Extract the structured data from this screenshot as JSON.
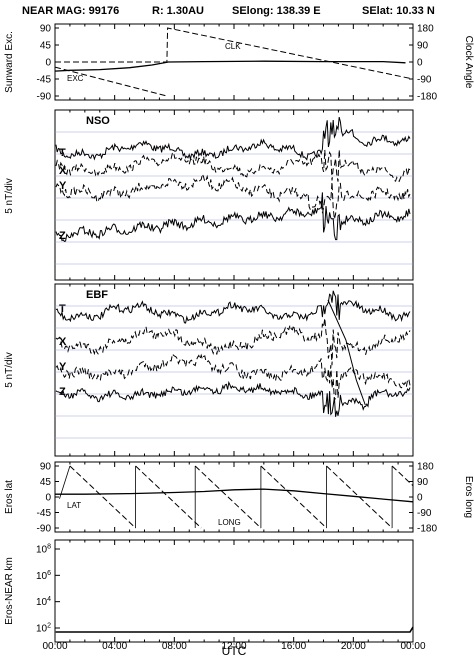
{
  "header": {
    "title": "NEAR MAG: 99176",
    "distance": "R: 1.30AU",
    "selong": "SElong:  138.39 E",
    "selat": "SElat:   10.33 N"
  },
  "chart_data": [
    {
      "type": "line",
      "panel": "clock-angle",
      "ylabel": "Sunward Exc.",
      "y2label": "Clock Angle",
      "ylim": [
        -90,
        90
      ],
      "y2lim": [
        -180,
        180
      ],
      "yticks": [
        "90",
        "45",
        "0",
        "-45",
        "-90"
      ],
      "y2ticks": [
        "180",
        "90",
        "0",
        "-90",
        "-180"
      ],
      "series": [
        {
          "name": "CLK",
          "x": [
            0,
            7.5,
            7.55,
            24
          ],
          "values": [
            0,
            0,
            180,
            -90
          ],
          "dash": true
        },
        {
          "name": "EXC",
          "x": [
            0,
            1,
            3,
            5,
            6.5,
            7.6,
            10,
            14,
            18,
            22,
            23.5
          ],
          "values": [
            -24,
            -22,
            -20,
            -15,
            -8,
            0,
            1,
            2,
            1,
            1,
            -2
          ],
          "dash": false
        }
      ],
      "annotations": [
        "CLK",
        "EXC"
      ]
    },
    {
      "type": "line",
      "panel": "nso",
      "label": "NSO",
      "ylabel": "5 nT/div",
      "traces": [
        "T",
        "X",
        "Y",
        "Z"
      ]
    },
    {
      "type": "line",
      "panel": "ebf",
      "label": "EBF",
      "ylabel": "5 nT/div",
      "traces": [
        "T",
        "X",
        "Y",
        "Z"
      ]
    },
    {
      "type": "line",
      "panel": "eros",
      "ylabel": "Eros lat",
      "y2label": "Eros long",
      "ylim": [
        -90,
        90
      ],
      "y2lim": [
        -180,
        180
      ],
      "yticks": [
        "90",
        "45",
        "0",
        "-45",
        "-90"
      ],
      "y2ticks": [
        "180",
        "90",
        "0",
        "-90",
        "-180"
      ],
      "annotations": [
        "LAT",
        "LONG"
      ],
      "lat": {
        "x": [
          0,
          2,
          5,
          8,
          10,
          12,
          14,
          16,
          18,
          20,
          22,
          24
        ],
        "values": [
          8,
          8,
          10,
          13,
          16,
          21,
          23,
          18,
          10,
          2,
          -6,
          -14
        ]
      },
      "long_sawtooth": {
        "start_hours": [
          1.0,
          5.4,
          9.4,
          13.8,
          18.2,
          22.6
        ],
        "period_hours": 4.4,
        "ylim": [
          -180,
          180
        ]
      }
    },
    {
      "type": "line",
      "panel": "distance",
      "ylabel": "Eros-NEAR km",
      "yscale": "log",
      "yticks": [
        "10^8",
        "10^6",
        "10^4",
        "10^2"
      ],
      "series": [
        {
          "x": [
            0.05,
            23.8,
            24
          ],
          "values": [
            50,
            50,
            120
          ]
        }
      ]
    }
  ],
  "xaxis": {
    "label": "UTC",
    "ticks": [
      "00:00",
      "04:00",
      "08:00",
      "12:00",
      "16:00",
      "20:00",
      "00:00"
    ],
    "range_hours": [
      0,
      24
    ]
  },
  "colors": {
    "axis": "#000000",
    "grid": "#9aa6e0",
    "trace": "#000000"
  }
}
